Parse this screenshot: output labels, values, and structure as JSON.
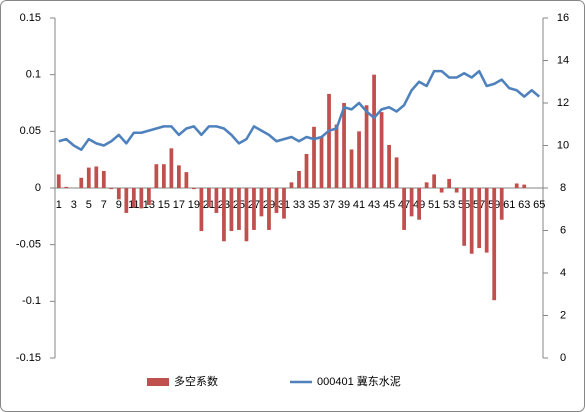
{
  "chart_data": {
    "type": "bar",
    "categories": [
      "1",
      null,
      "3",
      null,
      "5",
      null,
      "7",
      null,
      "9",
      null,
      "11",
      null,
      "13",
      null,
      "15",
      null,
      "17",
      null,
      "19",
      null,
      "21",
      null,
      "23",
      null,
      "25",
      null,
      "27",
      null,
      "29",
      null,
      "31",
      null,
      "33",
      null,
      "35",
      null,
      "37",
      null,
      "39",
      null,
      "41",
      null,
      "43",
      null,
      "45",
      null,
      "47",
      null,
      "49",
      null,
      "51",
      null,
      "53",
      null,
      "55",
      null,
      "57",
      null,
      "59",
      null,
      "61",
      null,
      "63",
      null,
      "65"
    ],
    "series": [
      {
        "name": "多空系数",
        "type": "bar",
        "color": "#c0504d",
        "values": [
          0.012,
          0.001,
          0.0,
          0.009,
          0.018,
          0.019,
          0.015,
          -0.001,
          -0.01,
          -0.022,
          -0.017,
          -0.018,
          -0.015,
          0.021,
          0.021,
          0.035,
          0.02,
          0.014,
          -0.001,
          -0.038,
          -0.017,
          -0.022,
          -0.047,
          -0.038,
          -0.037,
          -0.047,
          -0.037,
          -0.025,
          -0.037,
          -0.022,
          -0.027,
          0.005,
          0.015,
          0.03,
          0.054,
          0.045,
          0.083,
          0.056,
          0.075,
          0.034,
          0.05,
          0.073,
          0.1,
          0.067,
          0.038,
          0.027,
          -0.037,
          -0.025,
          -0.028,
          0.005,
          0.012,
          -0.004,
          0.008,
          -0.004,
          -0.051,
          -0.058,
          -0.053,
          -0.057,
          -0.099,
          -0.028,
          0.0,
          0.004,
          0.003,
          0.0,
          0.0
        ]
      },
      {
        "name": "000401 冀东水泥",
        "type": "line",
        "axis": "y2",
        "color": "#4f81bd",
        "values": [
          10.2,
          10.3,
          10.0,
          9.8,
          10.3,
          10.1,
          10.0,
          10.2,
          10.5,
          10.1,
          10.6,
          10.6,
          10.7,
          10.8,
          10.9,
          10.9,
          10.5,
          10.8,
          10.9,
          10.5,
          10.9,
          10.9,
          10.8,
          10.5,
          10.1,
          10.3,
          10.9,
          10.7,
          10.5,
          10.2,
          10.3,
          10.4,
          10.2,
          10.4,
          10.3,
          10.4,
          10.7,
          10.8,
          11.8,
          11.7,
          12.0,
          11.6,
          11.3,
          11.7,
          11.8,
          11.6,
          11.9,
          12.6,
          13.0,
          12.8,
          13.5,
          13.5,
          13.2,
          13.2,
          13.4,
          13.2,
          13.5,
          12.8,
          12.9,
          13.1,
          12.7,
          12.6,
          12.3,
          12.6,
          12.3
        ]
      }
    ],
    "ylim": [
      -0.15,
      0.15
    ],
    "yticks": [
      -0.15,
      -0.1,
      -0.05,
      0,
      0.05,
      0.1,
      0.15
    ],
    "y2lim": [
      0,
      16
    ],
    "y2ticks": [
      0,
      2,
      4,
      6,
      8,
      10,
      12,
      14,
      16
    ],
    "grid": false,
    "legend": "bottom"
  }
}
